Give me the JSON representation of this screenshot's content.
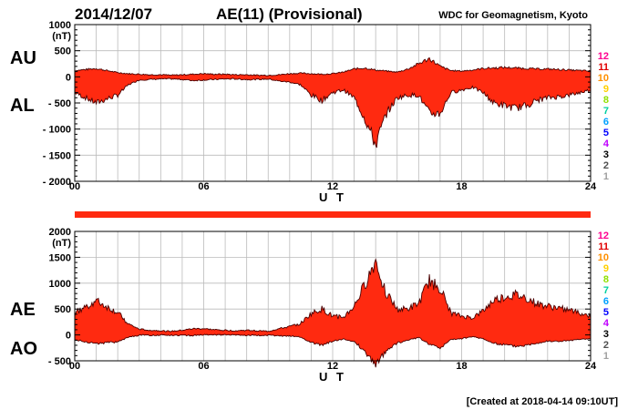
{
  "header": {
    "date": "2014/12/07",
    "title": "AE(11) (Provisional)",
    "source": "WDC for Geomagnetism, Kyoto",
    "created": "[Created at 2018-04-14 09:10UT]"
  },
  "legend_station_numbers": [
    "12",
    "11",
    "10",
    "9",
    "8",
    "7",
    "6",
    "5",
    "4",
    "3",
    "2",
    "1"
  ],
  "colors": {
    "fill": "#ff2a10",
    "outline": "#4a0000",
    "grid": "#bbbbbb",
    "frame": "#000000",
    "station_colors": [
      "#ff0090",
      "#e00000",
      "#ff9000",
      "#ffd000",
      "#90e000",
      "#00d0a0",
      "#00a0ff",
      "#0000ff",
      "#c000ff",
      "#000000",
      "#505050",
      "#a0a0a0"
    ]
  },
  "chart_data": [
    {
      "type": "area",
      "name": "AU/AL",
      "upper_label": "AU",
      "lower_label": "AL",
      "unit": "(nT)",
      "xlabel": "U T",
      "x_ticks": [
        "00",
        "06",
        "12",
        "18",
        "24"
      ],
      "xlim": [
        0,
        24
      ],
      "ylim": [
        -2000,
        1000
      ],
      "y_tick_labels": [
        "1000",
        "500",
        "0",
        "- 500",
        "- 1000",
        "- 1500",
        "- 2000"
      ],
      "grid": true,
      "x_hours": [
        0,
        0.5,
        1,
        1.5,
        2,
        2.5,
        3,
        3.5,
        4,
        4.5,
        5,
        5.5,
        6,
        6.5,
        7,
        7.5,
        8,
        8.5,
        9,
        9.5,
        10,
        10.5,
        11,
        11.5,
        12,
        12.5,
        13,
        13.5,
        14,
        14.5,
        15,
        15.5,
        16,
        16.5,
        17,
        17.5,
        18,
        18.5,
        19,
        19.5,
        20,
        20.5,
        21,
        21.5,
        22,
        22.5,
        23,
        23.5,
        24
      ],
      "series": [
        {
          "name": "AU",
          "values": [
            120,
            140,
            160,
            120,
            80,
            60,
            50,
            40,
            40,
            30,
            40,
            50,
            60,
            50,
            50,
            40,
            40,
            30,
            30,
            40,
            60,
            70,
            60,
            50,
            60,
            90,
            150,
            170,
            130,
            110,
            90,
            150,
            250,
            350,
            200,
            120,
            110,
            130,
            160,
            170,
            180,
            170,
            160,
            150,
            150,
            140,
            130,
            120,
            110
          ]
        },
        {
          "name": "AL",
          "values": [
            -300,
            -400,
            -500,
            -420,
            -350,
            -150,
            -60,
            -50,
            -40,
            -40,
            -50,
            -70,
            -60,
            -50,
            -40,
            -40,
            -50,
            -50,
            -40,
            -80,
            -100,
            -150,
            -350,
            -450,
            -300,
            -250,
            -400,
            -800,
            -1300,
            -700,
            -400,
            -350,
            -350,
            -700,
            -700,
            -300,
            -250,
            -200,
            -300,
            -500,
            -550,
            -600,
            -550,
            -450,
            -400,
            -380,
            -350,
            -300,
            -250
          ]
        }
      ]
    },
    {
      "type": "area",
      "name": "AE/AO",
      "upper_label": "AE",
      "lower_label": "AO",
      "unit": "(nT)",
      "xlabel": "U T",
      "x_ticks": [
        "00",
        "06",
        "12",
        "18",
        "24"
      ],
      "xlim": [
        0,
        24
      ],
      "ylim": [
        -500,
        2000
      ],
      "y_tick_labels": [
        "2000",
        "1500",
        "1000",
        "500",
        "0",
        "- 500"
      ],
      "grid": true,
      "x_hours": [
        0,
        0.5,
        1,
        1.5,
        2,
        2.5,
        3,
        3.5,
        4,
        4.5,
        5,
        5.5,
        6,
        6.5,
        7,
        7.5,
        8,
        8.5,
        9,
        9.5,
        10,
        10.5,
        11,
        11.5,
        12,
        12.5,
        13,
        13.5,
        14,
        14.5,
        15,
        15.5,
        16,
        16.5,
        17,
        17.5,
        18,
        18.5,
        19,
        19.5,
        20,
        20.5,
        21,
        21.5,
        22,
        22.5,
        23,
        23.5,
        24
      ],
      "series": [
        {
          "name": "AE",
          "values": [
            420,
            540,
            660,
            540,
            430,
            210,
            110,
            90,
            80,
            70,
            90,
            120,
            120,
            100,
            90,
            80,
            90,
            80,
            70,
            120,
            160,
            220,
            410,
            500,
            360,
            340,
            550,
            970,
            1430,
            810,
            490,
            500,
            600,
            1050,
            900,
            420,
            360,
            330,
            460,
            670,
            730,
            770,
            710,
            600,
            550,
            520,
            480,
            420,
            360
          ]
        },
        {
          "name": "AO",
          "values": [
            -90,
            -130,
            -170,
            -150,
            -135,
            -45,
            -5,
            -5,
            0,
            -5,
            -5,
            -10,
            0,
            0,
            5,
            0,
            -5,
            -10,
            -5,
            -20,
            -20,
            -40,
            -145,
            -200,
            -120,
            -80,
            -125,
            -315,
            -585,
            -295,
            -155,
            -100,
            -50,
            -175,
            -250,
            -90,
            -70,
            -35,
            -70,
            -165,
            -185,
            -215,
            -195,
            -150,
            -125,
            -120,
            -110,
            -90,
            -70
          ]
        }
      ]
    }
  ]
}
